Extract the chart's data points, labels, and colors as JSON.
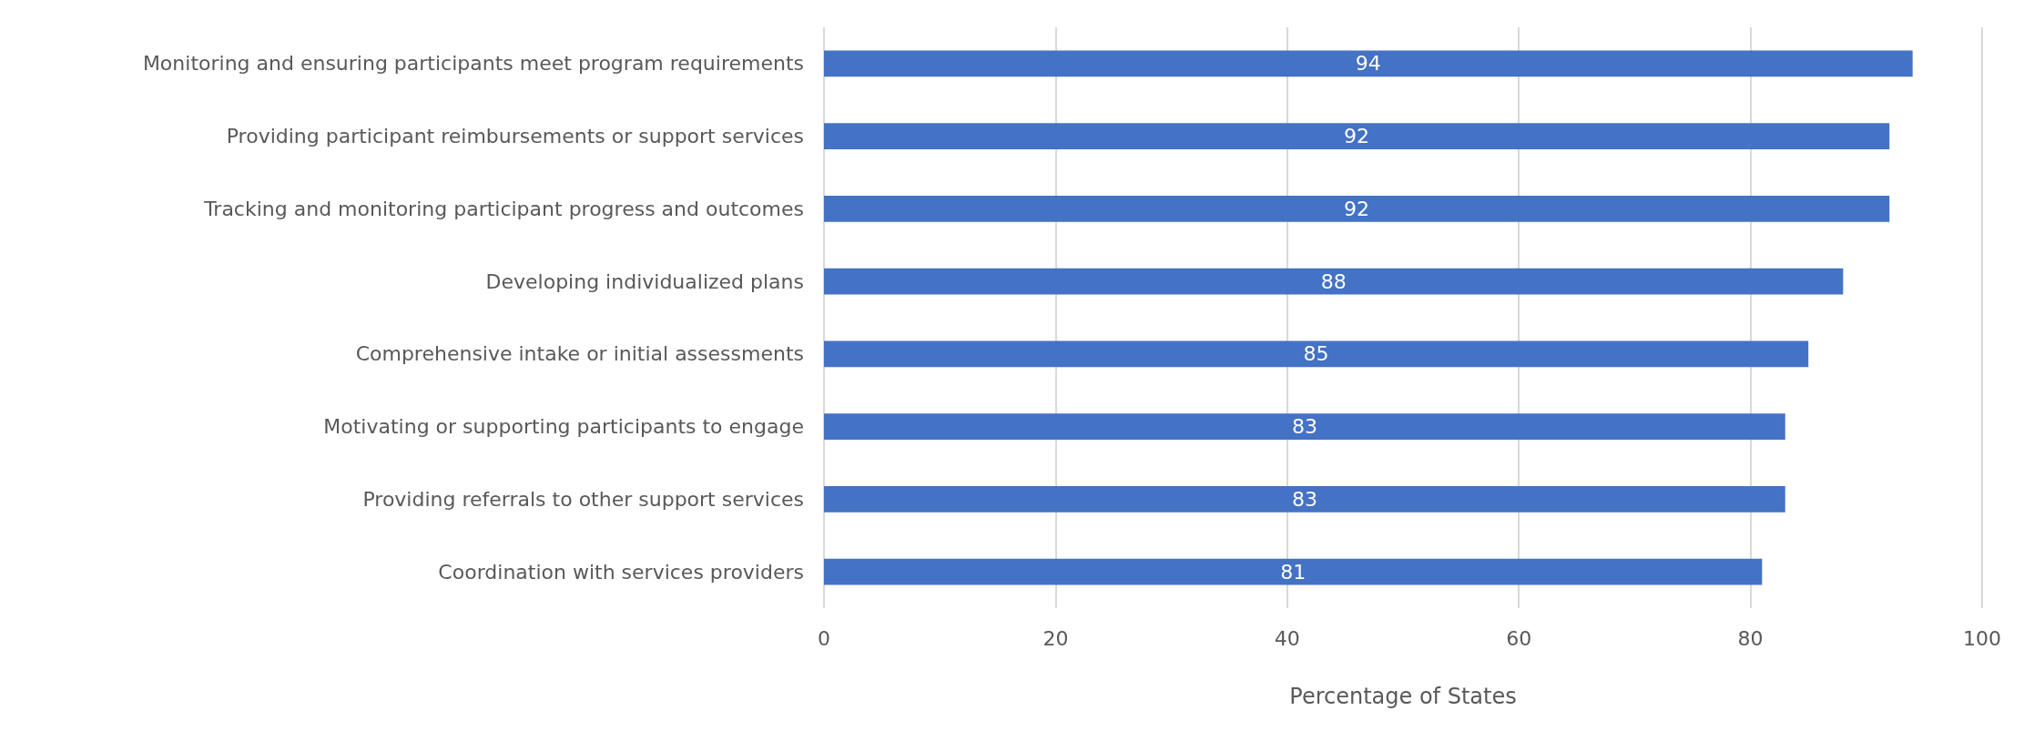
{
  "chart_data": {
    "type": "bar",
    "orientation": "horizontal",
    "xlabel": "Percentage of States",
    "categories": [
      "Monitoring and ensuring participants meet program requirements",
      "Providing participant reimbursements or support services",
      "Tracking and monitoring participant progress and outcomes",
      "Developing individualized plans",
      "Comprehensive intake or initial assessments",
      "Motivating or supporting participants to engage",
      "Providing referrals to other support services",
      "Coordination with services providers"
    ],
    "values": [
      94,
      92,
      92,
      88,
      85,
      83,
      83,
      81
    ],
    "color": "#4472c4",
    "xlim": [
      0,
      100
    ],
    "xticks": [
      0,
      20,
      40,
      60,
      80,
      100
    ],
    "grid": "x",
    "data_labels": true
  }
}
